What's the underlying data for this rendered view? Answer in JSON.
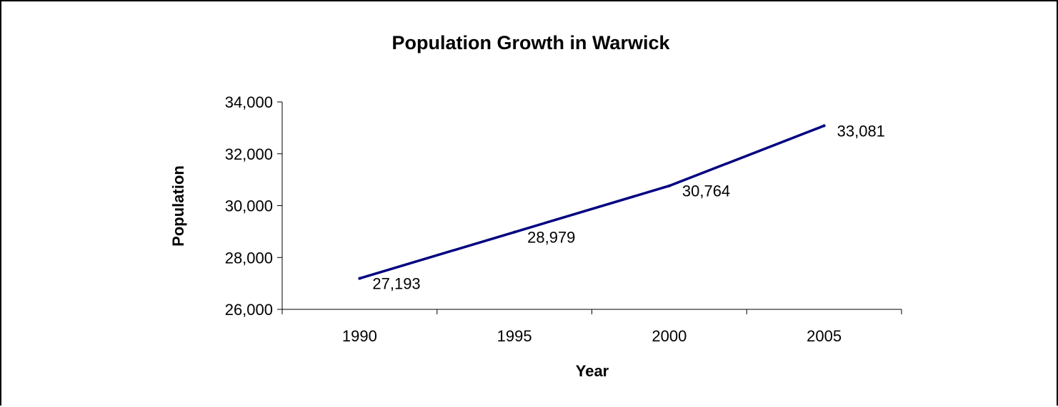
{
  "chart_data": {
    "type": "line",
    "title": "Population Growth in Warwick",
    "xlabel": "Year",
    "ylabel": "Population",
    "categories": [
      "1990",
      "1995",
      "2000",
      "2005"
    ],
    "series": [
      {
        "values": [
          27193,
          28979,
          30764,
          33081
        ],
        "value_labels": [
          "27,193",
          "28,979",
          "30,764",
          "33,081"
        ],
        "color": "#000080"
      }
    ],
    "ylim": [
      26000,
      34000
    ],
    "yticks": [
      26000,
      28000,
      30000,
      32000,
      34000
    ],
    "ytick_labels": [
      "26,000",
      "28,000",
      "30,000",
      "32,000",
      "34,000"
    ],
    "grid": false,
    "legend": "none"
  }
}
